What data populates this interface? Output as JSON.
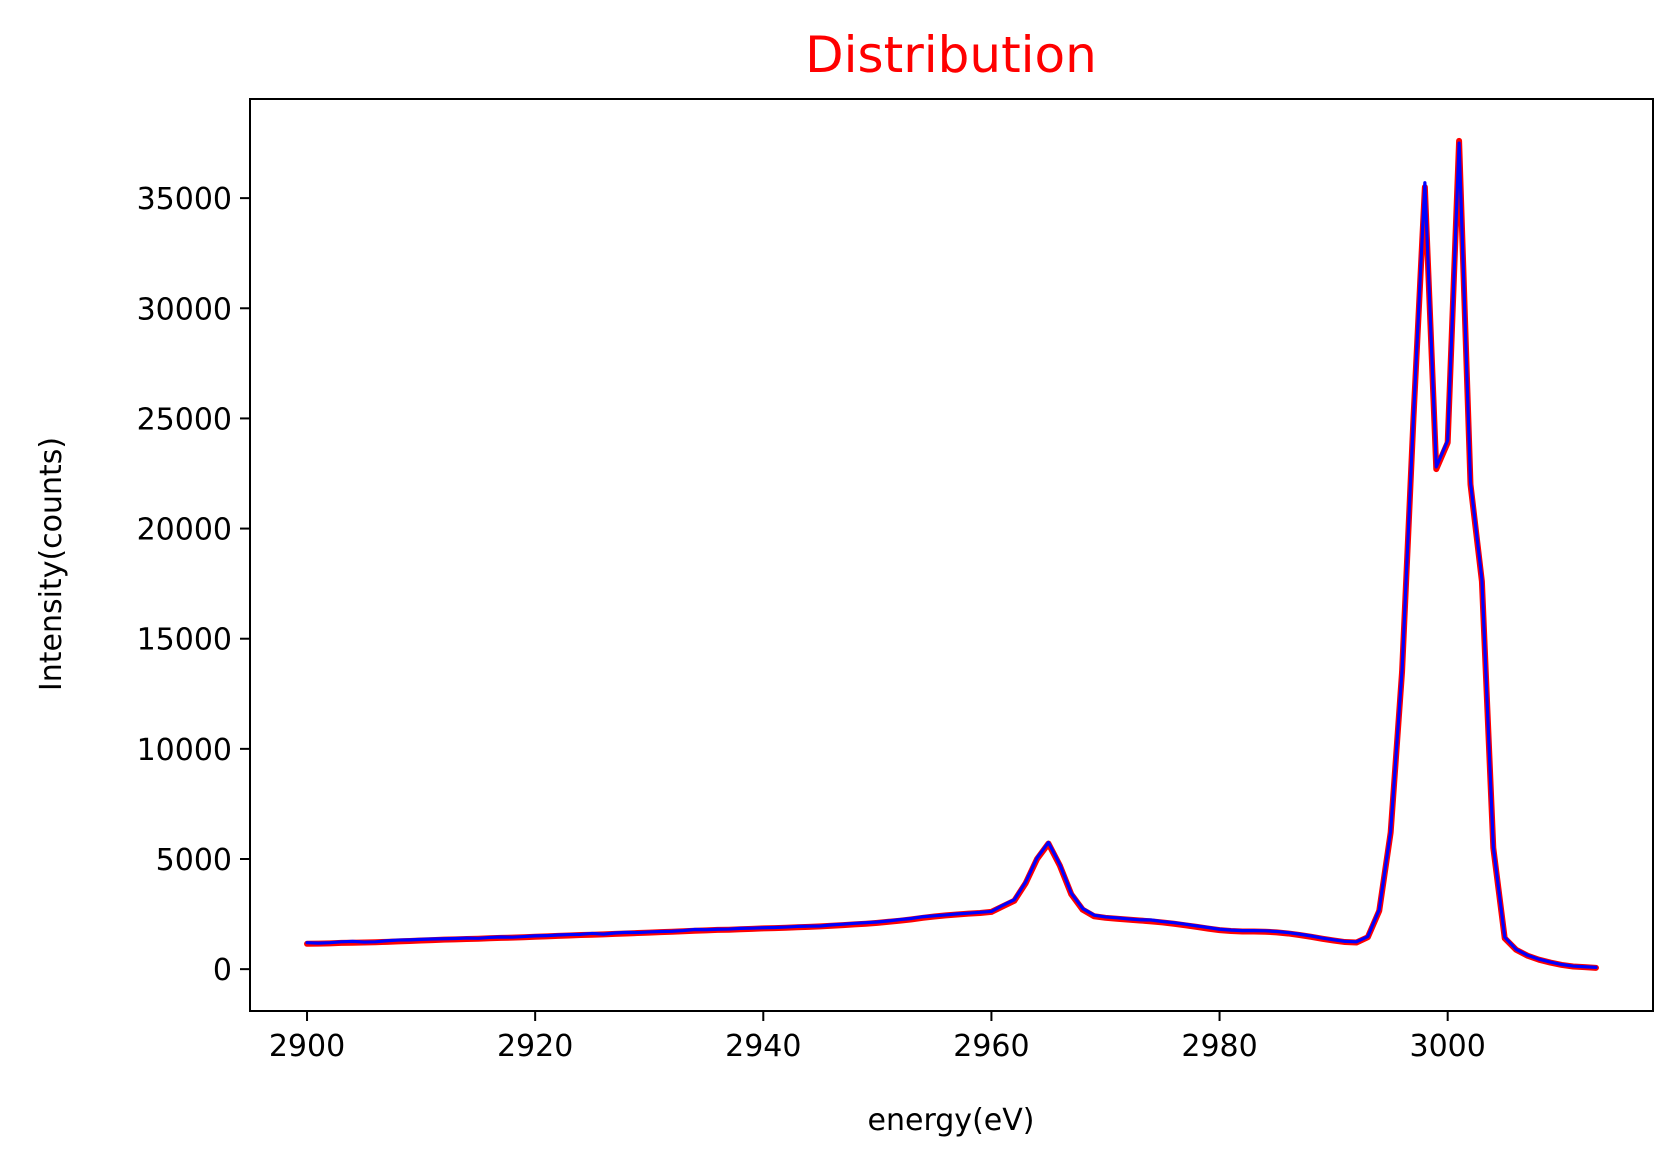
{
  "chart_data": {
    "type": "line",
    "title": "Distribution",
    "title_color": "#ff0000",
    "xlabel": "energy(eV)",
    "ylabel": "Intensity(counts)",
    "xlim": [
      2895,
      3018
    ],
    "ylim": [
      -1900,
      39500
    ],
    "x_ticks": [
      2900,
      2920,
      2940,
      2960,
      2980,
      3000
    ],
    "y_ticks": [
      0,
      5000,
      10000,
      15000,
      20000,
      25000,
      30000,
      35000
    ],
    "grid": false,
    "legend": "none",
    "x": [
      2900,
      2901,
      2902,
      2903,
      2904,
      2905,
      2906,
      2907,
      2908,
      2909,
      2910,
      2911,
      2912,
      2913,
      2914,
      2915,
      2916,
      2917,
      2918,
      2919,
      2920,
      2921,
      2922,
      2923,
      2924,
      2925,
      2926,
      2927,
      2928,
      2929,
      2930,
      2931,
      2932,
      2933,
      2934,
      2935,
      2936,
      2937,
      2938,
      2939,
      2940,
      2941,
      2942,
      2943,
      2944,
      2945,
      2946,
      2947,
      2948,
      2949,
      2950,
      2951,
      2952,
      2953,
      2954,
      2955,
      2956,
      2957,
      2958,
      2959,
      2960,
      2961,
      2962,
      2963,
      2964,
      2965,
      2966,
      2967,
      2968,
      2969,
      2970,
      2971,
      2972,
      2973,
      2974,
      2975,
      2976,
      2977,
      2978,
      2979,
      2980,
      2981,
      2982,
      2983,
      2984,
      2985,
      2986,
      2987,
      2988,
      2989,
      2990,
      2991,
      2992,
      2993,
      2994,
      2995,
      2996,
      2997,
      2998,
      2999,
      3000,
      3001,
      3002,
      3003,
      3004,
      3005,
      3006,
      3007,
      3008,
      3009,
      3010,
      3011,
      3012,
      3013
    ],
    "series": [
      {
        "color": "#ff0000",
        "values": [
          1150,
          1160,
          1170,
          1190,
          1200,
          1210,
          1220,
          1240,
          1260,
          1280,
          1300,
          1320,
          1340,
          1350,
          1370,
          1380,
          1400,
          1420,
          1430,
          1450,
          1470,
          1490,
          1510,
          1530,
          1550,
          1560,
          1580,
          1600,
          1620,
          1640,
          1660,
          1680,
          1700,
          1720,
          1740,
          1760,
          1780,
          1790,
          1810,
          1830,
          1850,
          1860,
          1880,
          1900,
          1920,
          1940,
          1970,
          2000,
          2030,
          2060,
          2100,
          2150,
          2200,
          2260,
          2330,
          2390,
          2440,
          2480,
          2520,
          2550,
          2600,
          2850,
          3100,
          3900,
          5000,
          5700,
          4700,
          3400,
          2700,
          2400,
          2330,
          2290,
          2250,
          2210,
          2170,
          2120,
          2060,
          1990,
          1920,
          1840,
          1770,
          1730,
          1710,
          1710,
          1700,
          1670,
          1620,
          1550,
          1470,
          1380,
          1300,
          1230,
          1210,
          1450,
          2650,
          6200,
          13500,
          25000,
          35500,
          22700,
          23900,
          37600,
          22000,
          17600,
          5500,
          1400,
          880,
          610,
          430,
          300,
          190,
          120,
          90,
          60
        ]
      },
      {
        "color": "#0000ff",
        "values": [
          1200,
          1180,
          1200,
          1240,
          1260,
          1230,
          1240,
          1290,
          1320,
          1330,
          1350,
          1370,
          1380,
          1390,
          1410,
          1400,
          1440,
          1460,
          1450,
          1480,
          1510,
          1520,
          1550,
          1570,
          1580,
          1620,
          1590,
          1640,
          1670,
          1660,
          1690,
          1710,
          1720,
          1750,
          1800,
          1790,
          1810,
          1820,
          1850,
          1860,
          1880,
          1890,
          1910,
          1940,
          1950,
          1960,
          2010,
          2040,
          2080,
          2110,
          2140,
          2190,
          2250,
          2300,
          2380,
          2420,
          2460,
          2510,
          2540,
          2580,
          2620,
          2900,
          3150,
          3950,
          5050,
          5750,
          4750,
          3450,
          2750,
          2450,
          2370,
          2330,
          2280,
          2240,
          2230,
          2160,
          2110,
          2040,
          1960,
          1890,
          1810,
          1770,
          1750,
          1750,
          1740,
          1710,
          1660,
          1590,
          1510,
          1410,
          1330,
          1260,
          1240,
          1480,
          2700,
          6250,
          13550,
          25050,
          35700,
          22800,
          24000,
          37500,
          22100,
          17700,
          5550,
          1450,
          900,
          630,
          450,
          320,
          210,
          140,
          110,
          80
        ]
      }
    ]
  }
}
